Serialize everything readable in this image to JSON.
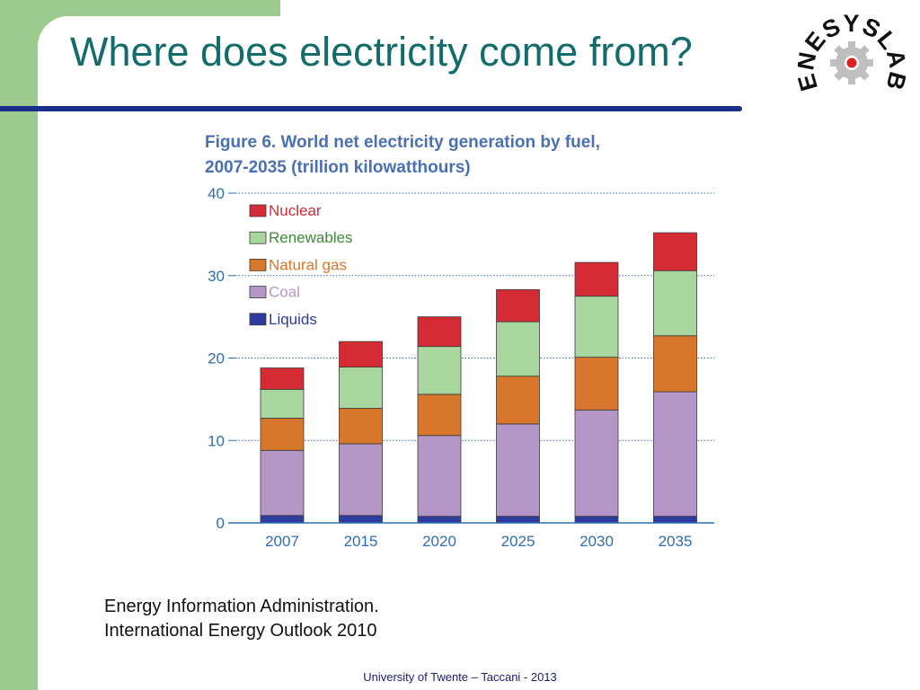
{
  "slide": {
    "title": "Where does electricity come from?",
    "source_line1": "Energy Information Administration.",
    "source_line2": "International Energy Outlook 2010",
    "footer": "University of Twente – Taccani - 2013"
  },
  "logo": {
    "text": "ENESYSLAB",
    "icon": "gear-icon",
    "colors": {
      "text": "#111111",
      "gear": "#bfbfbf",
      "center": "#e02020"
    }
  },
  "chart_data": {
    "type": "bar",
    "stacked": true,
    "title_line1": "Figure 6. World net electricity generation by fuel,",
    "title_line2": "2007-2035 (trillion kilowatthours)",
    "xlabel": "",
    "ylabel": "",
    "categories": [
      "2007",
      "2015",
      "2020",
      "2025",
      "2030",
      "2035"
    ],
    "ylim": [
      0,
      40
    ],
    "yticks": [
      0,
      10,
      20,
      30,
      40
    ],
    "grid": true,
    "legend_position": "top-left",
    "series": [
      {
        "name": "Liquids",
        "color": "#2e3a9e",
        "values": [
          0.9,
          0.9,
          0.8,
          0.8,
          0.8,
          0.8
        ]
      },
      {
        "name": "Coal",
        "color": "#b597c7",
        "values": [
          7.9,
          8.7,
          9.8,
          11.2,
          12.9,
          15.1
        ]
      },
      {
        "name": "Natural gas",
        "color": "#d8762b",
        "values": [
          3.9,
          4.3,
          5.0,
          5.8,
          6.4,
          6.8
        ]
      },
      {
        "name": "Renewables",
        "color": "#a9d69f",
        "values": [
          3.5,
          5.0,
          5.8,
          6.6,
          7.4,
          7.9
        ]
      },
      {
        "name": "Nuclear",
        "color": "#d52b35",
        "values": [
          2.6,
          3.1,
          3.6,
          3.9,
          4.1,
          4.6
        ]
      }
    ],
    "legend_order": [
      "Nuclear",
      "Renewables",
      "Natural gas",
      "Coal",
      "Liquids"
    ],
    "colors": {
      "title": "#4a6fb3",
      "axis": "#2f6db5",
      "tick_label": "#2f6db5",
      "grid": "#2f6db5"
    }
  }
}
